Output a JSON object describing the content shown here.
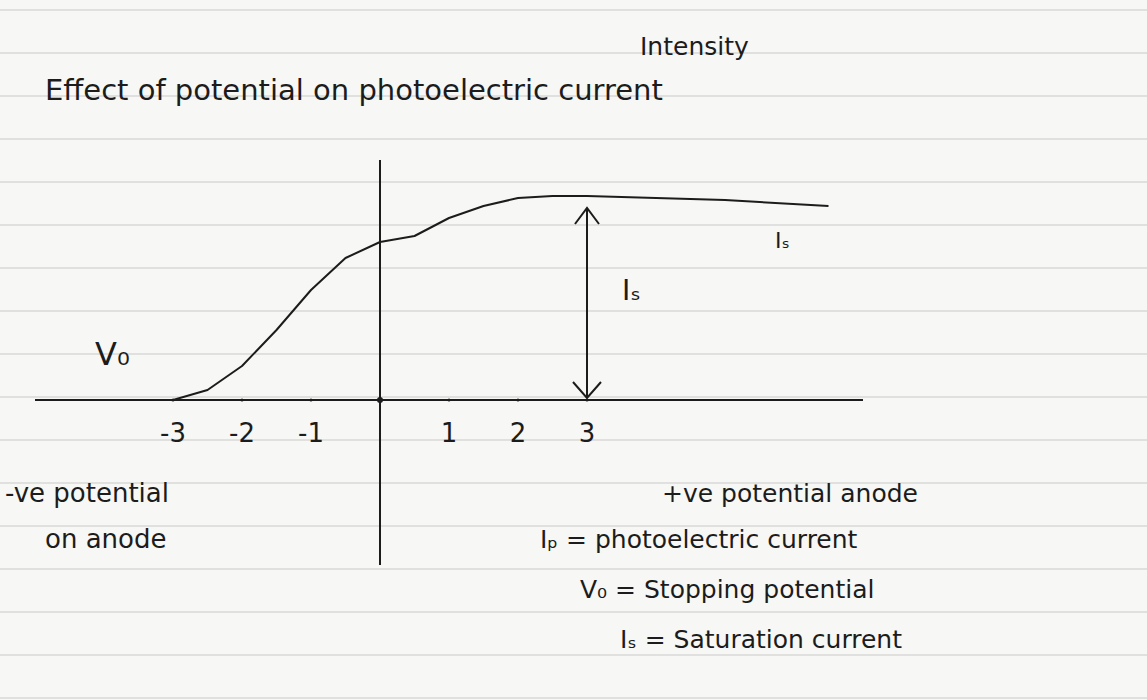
{
  "chart_data": {
    "type": "line",
    "title": "Effect of potential on photoelectric current",
    "annotations": [
      "Intensity",
      "V₀",
      "Iₛ",
      "Iₛ",
      "-ve potential",
      "on anode",
      "+ve potential anode",
      "Iₚ = photoelectric current",
      "V₀ = Stopping potential",
      "Iₛ = Saturation current"
    ],
    "x": [
      -3,
      -2.5,
      -2,
      -1.5,
      -1,
      -0.5,
      0,
      0.5,
      1,
      1.5,
      2,
      2.5,
      3,
      4,
      5,
      6.5
    ],
    "values": [
      0,
      0.05,
      0.17,
      0.35,
      0.55,
      0.71,
      0.79,
      0.82,
      0.91,
      0.97,
      1.01,
      1.02,
      1.02,
      1.01,
      1.0,
      0.97
    ],
    "color": "#1c1c1c",
    "xlim": [
      -5,
      7
    ],
    "ylim": [
      0,
      1.2
    ],
    "xticks": [
      -3,
      -2,
      -1,
      1,
      2,
      3
    ],
    "tick_labels": "x",
    "grid": false
  }
}
